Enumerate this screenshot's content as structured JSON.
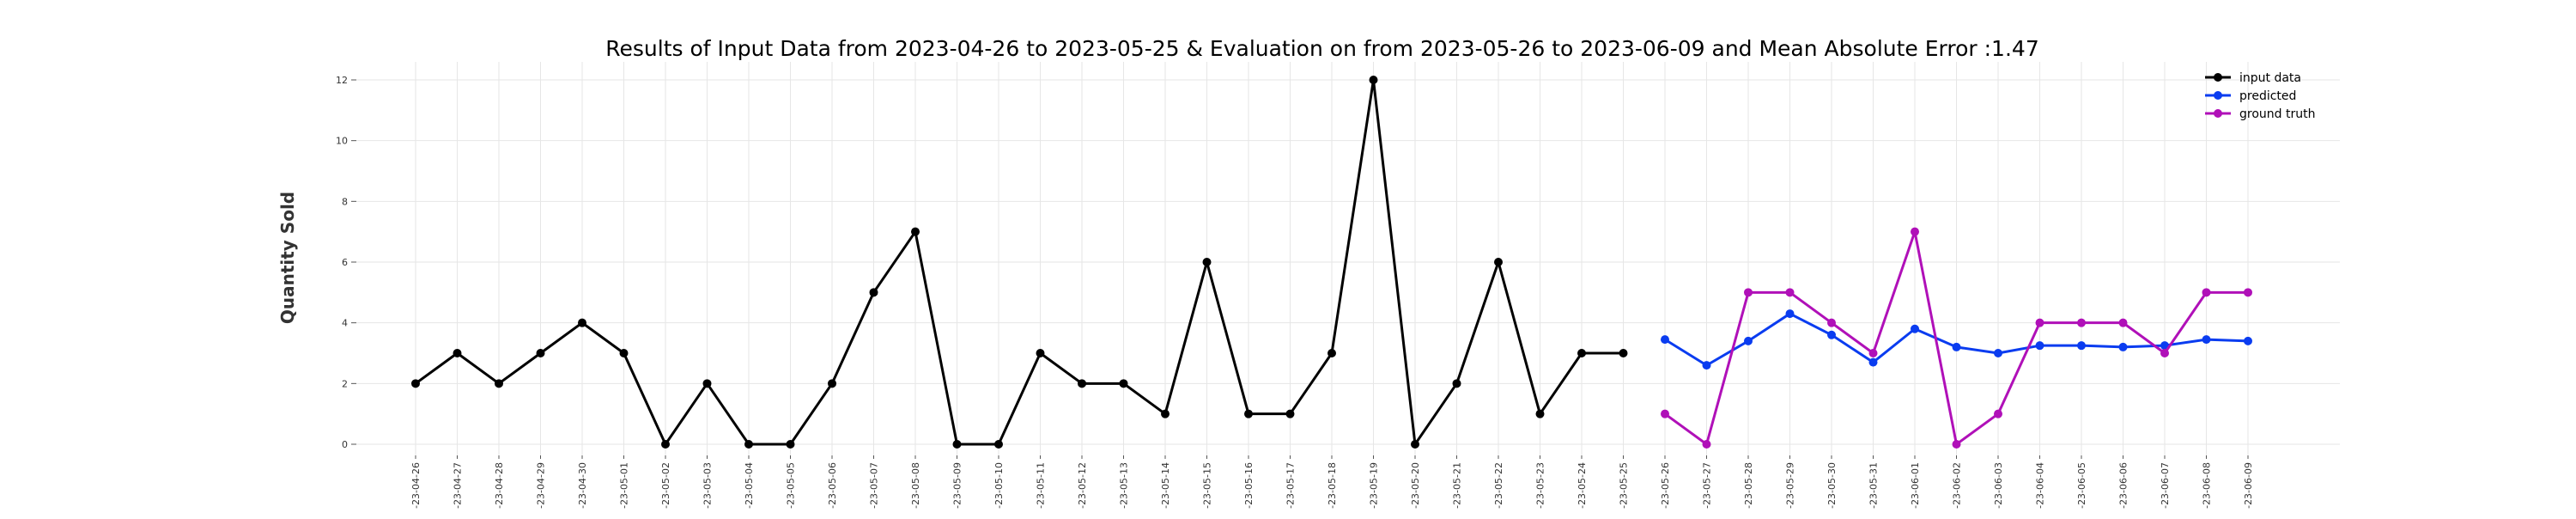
{
  "chart_data": {
    "type": "line",
    "title": "Results of Input Data from 2023-04-26 to 2023-05-25 & Evaluation on from 2023-05-26 to 2023-06-09 and Mean Absolute Error  :1.47",
    "xlabel": "",
    "ylabel": "Quantity Sold",
    "ylim": [
      0,
      12.5
    ],
    "yticks": [
      0,
      2,
      4,
      6,
      8,
      10,
      12
    ],
    "grid": true,
    "legend_position": "top-right",
    "x": [
      "2023-04-26",
      "2023-04-27",
      "2023-04-28",
      "2023-04-29",
      "2023-04-30",
      "2023-05-01",
      "2023-05-02",
      "2023-05-03",
      "2023-05-04",
      "2023-05-05",
      "2023-05-06",
      "2023-05-07",
      "2023-05-08",
      "2023-05-09",
      "2023-05-10",
      "2023-05-11",
      "2023-05-12",
      "2023-05-13",
      "2023-05-14",
      "2023-05-15",
      "2023-05-16",
      "2023-05-17",
      "2023-05-18",
      "2023-05-19",
      "2023-05-20",
      "2023-05-21",
      "2023-05-22",
      "2023-05-23",
      "2023-05-24",
      "2023-05-25",
      "2023-05-26",
      "2023-05-27",
      "2023-05-28",
      "2023-05-29",
      "2023-05-30",
      "2023-05-31",
      "2023-06-01",
      "2023-06-02",
      "2023-06-03",
      "2023-06-04",
      "2023-06-05",
      "2023-06-06",
      "2023-06-07",
      "2023-06-08",
      "2023-06-09"
    ],
    "tick_labels": [
      "-23-04-26",
      "-23-04-27",
      "-23-04-28",
      "-23-04-29",
      "-23-04-30",
      "-23-05-01",
      "-23-05-02",
      "-23-05-03",
      "-23-05-04",
      "-23-05-05",
      "-23-05-06",
      "-23-05-07",
      "-23-05-08",
      "-23-05-09",
      "-23-05-10",
      "-23-05-11",
      "-23-05-12",
      "-23-05-13",
      "-23-05-14",
      "-23-05-15",
      "-23-05-16",
      "-23-05-17",
      "-23-05-18",
      "-23-05-19",
      "-23-05-20",
      "-23-05-21",
      "-23-05-22",
      "-23-05-23",
      "-23-05-24",
      "-23-05-25",
      "-23-05-26",
      "-23-05-27",
      "-23-05-28",
      "-23-05-29",
      "-23-05-30",
      "-23-05-31",
      "-23-06-01",
      "-23-06-02",
      "-23-06-03",
      "-23-06-04",
      "-23-06-05",
      "-23-06-06",
      "-23-06-07",
      "-23-06-08",
      "-23-06-09"
    ],
    "series": [
      {
        "name": "input data",
        "color": "#000000",
        "x": [
          "2023-04-26",
          "2023-04-27",
          "2023-04-28",
          "2023-04-29",
          "2023-04-30",
          "2023-05-01",
          "2023-05-02",
          "2023-05-03",
          "2023-05-04",
          "2023-05-05",
          "2023-05-06",
          "2023-05-07",
          "2023-05-08",
          "2023-05-09",
          "2023-05-10",
          "2023-05-11",
          "2023-05-12",
          "2023-05-13",
          "2023-05-14",
          "2023-05-15",
          "2023-05-16",
          "2023-05-17",
          "2023-05-18",
          "2023-05-19",
          "2023-05-20",
          "2023-05-21",
          "2023-05-22",
          "2023-05-23",
          "2023-05-24",
          "2023-05-25"
        ],
        "values": [
          2,
          3,
          2,
          3,
          4,
          3,
          0,
          2,
          0,
          0,
          2,
          5,
          7,
          0,
          0,
          3,
          2,
          2,
          1,
          6,
          1,
          1,
          3,
          12,
          0,
          2,
          6,
          1,
          3,
          3
        ]
      },
      {
        "name": "predicted",
        "color": "#0a3cf0",
        "x": [
          "2023-05-26",
          "2023-05-27",
          "2023-05-28",
          "2023-05-29",
          "2023-05-30",
          "2023-05-31",
          "2023-06-01",
          "2023-06-02",
          "2023-06-03",
          "2023-06-04",
          "2023-06-05",
          "2023-06-06",
          "2023-06-07",
          "2023-06-08",
          "2023-06-09"
        ],
        "values": [
          3.45,
          2.6,
          3.4,
          4.3,
          3.6,
          2.7,
          3.8,
          3.2,
          3.0,
          3.25,
          3.25,
          3.2,
          3.25,
          3.45,
          3.4
        ]
      },
      {
        "name": "ground truth",
        "color": "#b010b8",
        "x": [
          "2023-05-26",
          "2023-05-27",
          "2023-05-28",
          "2023-05-29",
          "2023-05-30",
          "2023-05-31",
          "2023-06-01",
          "2023-06-02",
          "2023-06-03",
          "2023-06-04",
          "2023-06-05",
          "2023-06-06",
          "2023-06-07",
          "2023-06-08",
          "2023-06-09"
        ],
        "values": [
          1,
          0,
          5,
          5,
          4,
          3,
          7,
          0,
          1,
          4,
          4,
          4,
          3,
          5,
          5
        ]
      }
    ]
  }
}
